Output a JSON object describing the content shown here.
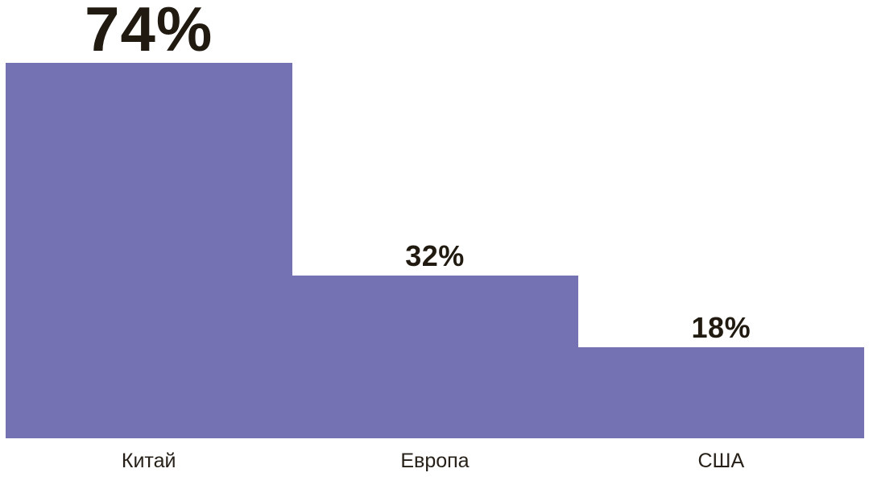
{
  "page": {
    "background_color": "#ffffff"
  },
  "chart_data": {
    "type": "bar",
    "orientation": "vertical",
    "categories": [
      "Китай",
      "Европа",
      "США"
    ],
    "values": [
      74,
      32,
      18
    ],
    "value_labels": [
      "74%",
      "32%",
      "18%"
    ],
    "series": [
      {
        "name": "",
        "values": [
          74,
          32,
          18
        ]
      }
    ],
    "title": "",
    "xlabel": "",
    "ylabel": "",
    "ylim": [
      0,
      100
    ],
    "grid": false,
    "legend": "none",
    "axes_visible": false,
    "bars_touching": true,
    "emphasized_index": 0,
    "bar_color": "#7572b4",
    "value_label_color": "#211a10",
    "category_label_color": "#262018"
  }
}
